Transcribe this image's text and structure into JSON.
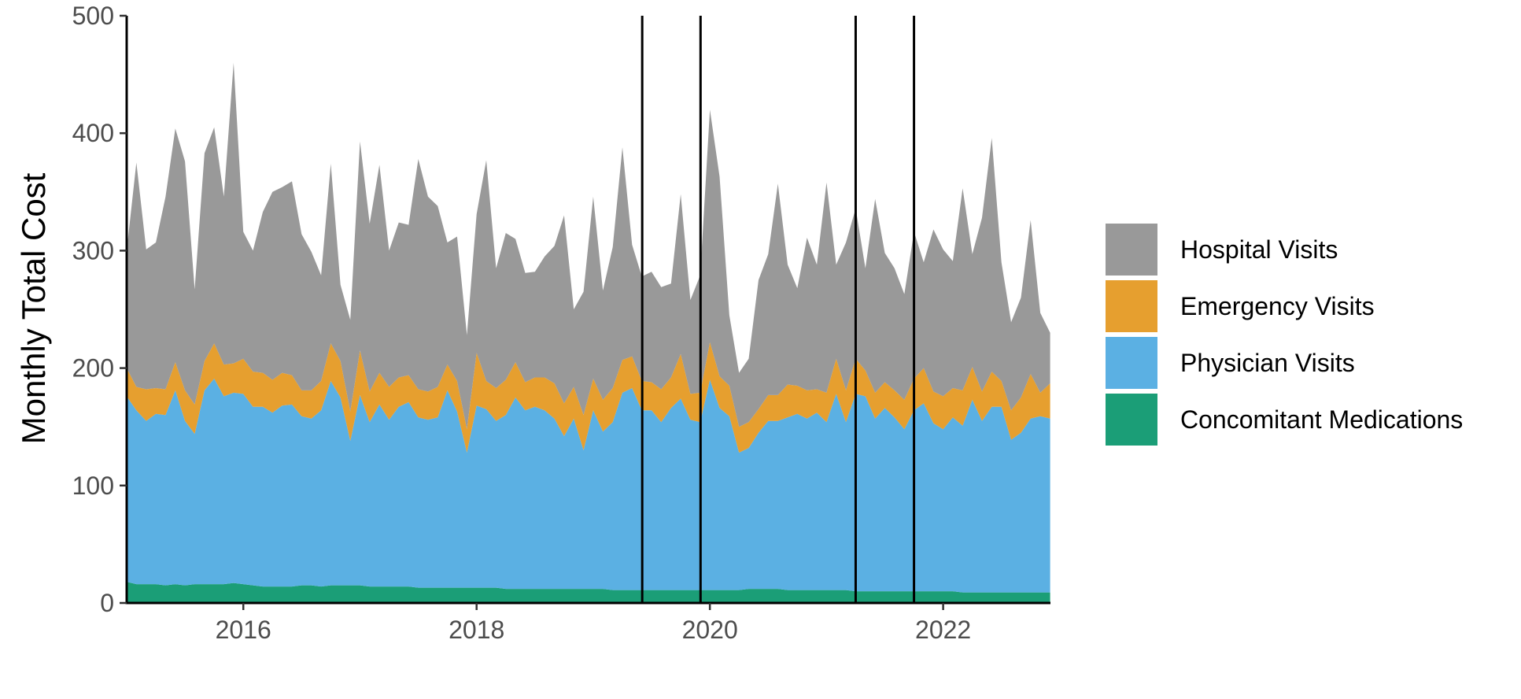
{
  "chart_data": {
    "type": "area",
    "stacked": true,
    "title": "",
    "xlabel": "",
    "ylabel": "Monthly Total Cost",
    "xlim": [
      2015.0,
      2022.92
    ],
    "ylim": [
      0,
      500
    ],
    "x_ticks": [
      2016,
      2018,
      2020,
      2022
    ],
    "y_ticks": [
      0,
      100,
      200,
      300,
      400,
      500
    ],
    "grid": false,
    "legend_position": "right",
    "vertical_lines": [
      2019.42,
      2019.92,
      2021.25,
      2021.75
    ],
    "x": [
      2015.0,
      2015.083,
      2015.167,
      2015.25,
      2015.333,
      2015.417,
      2015.5,
      2015.583,
      2015.667,
      2015.75,
      2015.833,
      2015.917,
      2016.0,
      2016.083,
      2016.167,
      2016.25,
      2016.333,
      2016.417,
      2016.5,
      2016.583,
      2016.667,
      2016.75,
      2016.833,
      2016.917,
      2017.0,
      2017.083,
      2017.167,
      2017.25,
      2017.333,
      2017.417,
      2017.5,
      2017.583,
      2017.667,
      2017.75,
      2017.833,
      2017.917,
      2018.0,
      2018.083,
      2018.167,
      2018.25,
      2018.333,
      2018.417,
      2018.5,
      2018.583,
      2018.667,
      2018.75,
      2018.833,
      2018.917,
      2019.0,
      2019.083,
      2019.167,
      2019.25,
      2019.333,
      2019.417,
      2019.5,
      2019.583,
      2019.667,
      2019.75,
      2019.833,
      2019.917,
      2020.0,
      2020.083,
      2020.167,
      2020.25,
      2020.333,
      2020.417,
      2020.5,
      2020.583,
      2020.667,
      2020.75,
      2020.833,
      2020.917,
      2021.0,
      2021.083,
      2021.167,
      2021.25,
      2021.333,
      2021.417,
      2021.5,
      2021.583,
      2021.667,
      2021.75,
      2021.833,
      2021.917,
      2022.0,
      2022.083,
      2022.167,
      2022.25,
      2022.333,
      2022.417,
      2022.5,
      2022.583,
      2022.667,
      2022.75,
      2022.833,
      2022.917
    ],
    "series": [
      {
        "name": "Concomitant Medications",
        "color": "#1b9e77",
        "values": [
          18,
          16,
          16,
          16,
          15,
          16,
          15,
          16,
          16,
          16,
          16,
          17,
          16,
          15,
          14,
          14,
          14,
          14,
          15,
          15,
          14,
          15,
          15,
          15,
          15,
          14,
          14,
          14,
          14,
          14,
          13,
          13,
          13,
          13,
          13,
          13,
          13,
          13,
          13,
          12,
          12,
          12,
          12,
          12,
          12,
          12,
          12,
          12,
          12,
          12,
          11,
          11,
          11,
          11,
          11,
          11,
          11,
          11,
          11,
          11,
          11,
          11,
          11,
          11,
          12,
          12,
          12,
          12,
          11,
          11,
          11,
          11,
          11,
          11,
          11,
          10,
          10,
          10,
          10,
          10,
          10,
          10,
          10,
          10,
          10,
          10,
          9,
          9,
          9,
          9,
          9,
          9,
          9,
          9,
          9,
          9
        ]
      },
      {
        "name": "Physician Visits",
        "color": "#5bb0e3",
        "values": [
          158,
          148,
          139,
          145,
          145,
          165,
          140,
          128,
          165,
          175,
          160,
          162,
          162,
          152,
          153,
          148,
          154,
          155,
          144,
          142,
          150,
          174,
          160,
          123,
          162,
          140,
          155,
          142,
          153,
          157,
          145,
          143,
          145,
          168,
          150,
          115,
          155,
          152,
          142,
          148,
          163,
          152,
          155,
          152,
          145,
          130,
          145,
          118,
          152,
          134,
          143,
          168,
          172,
          153,
          153,
          143,
          155,
          163,
          145,
          143,
          179,
          155,
          148,
          117,
          120,
          133,
          143,
          143,
          147,
          150,
          146,
          151,
          143,
          167,
          143,
          168,
          166,
          147,
          156,
          148,
          138,
          154,
          160,
          143,
          138,
          148,
          142,
          164,
          146,
          158,
          158,
          130,
          136,
          148,
          150,
          148
        ]
      },
      {
        "name": "Emergency Visits",
        "color": "#e69f2f",
        "values": [
          24,
          20,
          27,
          22,
          22,
          24,
          26,
          25,
          25,
          30,
          27,
          25,
          30,
          30,
          29,
          28,
          28,
          25,
          22,
          24,
          25,
          32,
          31,
          25,
          38,
          26,
          27,
          28,
          25,
          23,
          24,
          24,
          26,
          22,
          26,
          20,
          45,
          24,
          28,
          30,
          30,
          24,
          25,
          28,
          30,
          28,
          27,
          30,
          27,
          27,
          29,
          28,
          27,
          25,
          24,
          28,
          26,
          38,
          22,
          25,
          32,
          27,
          26,
          22,
          22,
          20,
          22,
          22,
          28,
          24,
          24,
          20,
          25,
          30,
          27,
          30,
          22,
          22,
          22,
          23,
          25,
          27,
          30,
          27,
          28,
          25,
          30,
          28,
          25,
          30,
          22,
          25,
          30,
          38,
          20,
          30
        ]
      },
      {
        "name": "Hospital Visits",
        "color": "#999999",
        "values": [
          100,
          191,
          119,
          124,
          164,
          199,
          195,
          98,
          177,
          184,
          143,
          256,
          108,
          103,
          137,
          160,
          158,
          165,
          133,
          118,
          90,
          153,
          65,
          78,
          178,
          143,
          177,
          116,
          132,
          128,
          196,
          166,
          154,
          104,
          123,
          80,
          118,
          188,
          102,
          125,
          105,
          93,
          90,
          103,
          117,
          160,
          66,
          105,
          155,
          93,
          120,
          181,
          95,
          89,
          94,
          87,
          80,
          136,
          80,
          100,
          198,
          170,
          60,
          46,
          54,
          110,
          120,
          180,
          102,
          83,
          130,
          106,
          179,
          80,
          126,
          128,
          87,
          165,
          110,
          104,
          90,
          125,
          90,
          138,
          125,
          108,
          172,
          96,
          148,
          199,
          101,
          75,
          85,
          131,
          68,
          43
        ]
      }
    ]
  }
}
